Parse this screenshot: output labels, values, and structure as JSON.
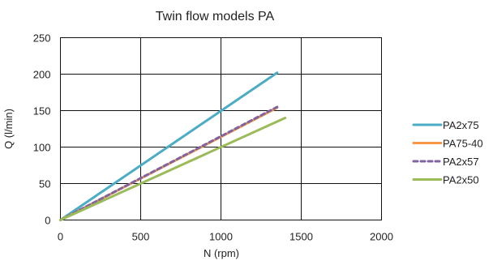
{
  "chart_data": {
    "type": "line",
    "title": "Twin flow models PA",
    "xlabel": "N (rpm)",
    "ylabel": "Q (l/min)",
    "xlim": [
      0,
      2000
    ],
    "ylim": [
      0,
      250
    ],
    "xticks": [
      0,
      500,
      1000,
      1500,
      2000
    ],
    "yticks": [
      0,
      50,
      100,
      150,
      200,
      250
    ],
    "grid": true,
    "legend_position": "right",
    "series": [
      {
        "name": "PA2x75",
        "color": "#4bacc6",
        "style": "solid",
        "x": [
          0,
          1350
        ],
        "y": [
          0,
          202
        ]
      },
      {
        "name": "PA75-40",
        "color": "#f79646",
        "style": "solid",
        "x": [
          0,
          1350
        ],
        "y": [
          0,
          154
        ]
      },
      {
        "name": "PA2x57",
        "color": "#8064a2",
        "style": "dashed",
        "x": [
          0,
          1350
        ],
        "y": [
          0,
          155
        ]
      },
      {
        "name": "PA2x50",
        "color": "#9bbb59",
        "style": "solid",
        "x": [
          0,
          1400
        ],
        "y": [
          0,
          140
        ]
      }
    ]
  }
}
